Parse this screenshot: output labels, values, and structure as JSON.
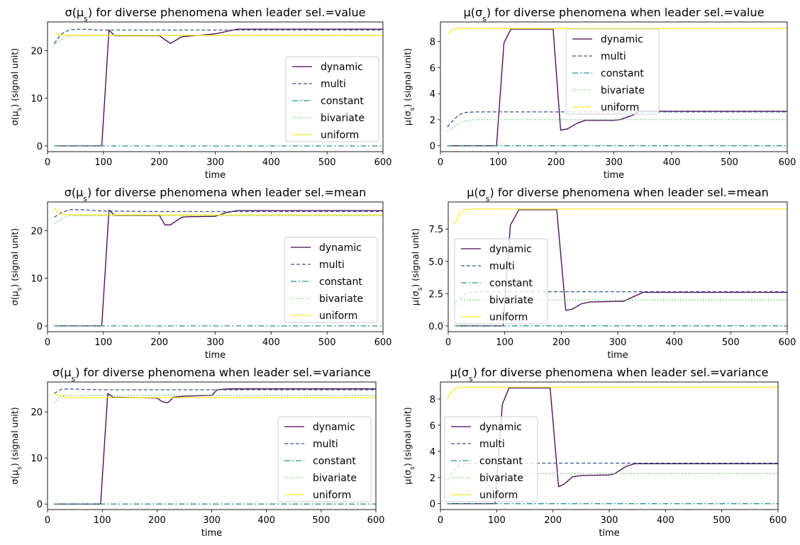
{
  "styles": {
    "dynamic": {
      "color": "#440154",
      "dash": ""
    },
    "multi": {
      "color": "#3b528b",
      "dash": "5,3"
    },
    "constant": {
      "color": "#21918c",
      "dash": "8,3,2,3"
    },
    "bivariate": {
      "color": "#5ec962",
      "dash": "1.5,2.5"
    },
    "uniform": {
      "color": "#fde725",
      "dash": ""
    }
  },
  "chart_data": [
    {
      "type": "line",
      "title_html": "σ(μ<tspan baseline-shift='sub' font-size='11'>s</tspan>) for diverse phenomena when leader sel.=value",
      "ylabel_html": "σ(μ<tspan baseline-shift='sub' font-size='9'>s</tspan>) (signal unit)",
      "xlabel": "time",
      "xlim": [
        0,
        600
      ],
      "ylim": [
        -1.2,
        26
      ],
      "xticks": [
        0,
        100,
        200,
        300,
        400,
        500,
        600
      ],
      "yticks": [
        0,
        10,
        20
      ],
      "ytick_labels": [
        "0",
        "10",
        "20"
      ],
      "legend": "center-right",
      "series": [
        {
          "name": "dynamic",
          "x": [
            12,
            97,
            110,
            120,
            200,
            220,
            240,
            250,
            300,
            340,
            600
          ],
          "y": [
            0,
            0,
            24.3,
            23.1,
            23.1,
            21.5,
            22.9,
            23.0,
            23.5,
            24.5,
            24.5
          ]
        },
        {
          "name": "multi",
          "x": [
            12,
            25,
            40,
            60,
            100,
            200,
            600
          ],
          "y": [
            21.5,
            23.5,
            24.4,
            24.5,
            24.3,
            24.3,
            24.3
          ]
        },
        {
          "name": "constant",
          "x": [
            12,
            600
          ],
          "y": [
            0,
            0
          ]
        },
        {
          "name": "bivariate",
          "x": [
            12,
            20,
            30,
            40,
            60,
            600
          ],
          "y": [
            21.3,
            21.8,
            22.8,
            23.1,
            23.1,
            23.1
          ]
        },
        {
          "name": "uniform",
          "x": [
            12,
            25,
            50,
            600
          ],
          "y": [
            23.6,
            23.3,
            23.2,
            23.2
          ]
        }
      ]
    },
    {
      "type": "line",
      "title_html": "μ(σ<tspan baseline-shift='sub' font-size='11'>s</tspan>) for diverse phenomena when leader sel.=value",
      "ylabel_html": "μ(σ<tspan baseline-shift='sub' font-size='9'>s</tspan>) (signal unit)",
      "xlabel": "time",
      "xlim": [
        0,
        600
      ],
      "ylim": [
        -0.45,
        9.5
      ],
      "xticks": [
        0,
        100,
        200,
        300,
        400,
        500,
        600
      ],
      "yticks": [
        0,
        2,
        4,
        6,
        8
      ],
      "ytick_labels": [
        "0",
        "2",
        "4",
        "6",
        "8"
      ],
      "legend": "top-center",
      "series": [
        {
          "name": "dynamic",
          "x": [
            12,
            97,
            110,
            122,
            195,
            208,
            220,
            235,
            250,
            300,
            310,
            330,
            345,
            600
          ],
          "y": [
            0,
            0,
            7.9,
            8.95,
            8.95,
            1.2,
            1.3,
            1.7,
            1.95,
            1.95,
            2.0,
            2.3,
            2.65,
            2.65
          ]
        },
        {
          "name": "multi",
          "x": [
            12,
            20,
            30,
            40,
            60,
            100,
            600
          ],
          "y": [
            1.45,
            1.85,
            2.3,
            2.55,
            2.6,
            2.6,
            2.6
          ]
        },
        {
          "name": "constant",
          "x": [
            12,
            600
          ],
          "y": [
            0,
            0
          ]
        },
        {
          "name": "bivariate",
          "x": [
            12,
            20,
            30,
            40,
            60,
            100,
            600
          ],
          "y": [
            1.15,
            1.3,
            1.7,
            1.9,
            2.0,
            2.0,
            2.0
          ]
        },
        {
          "name": "uniform",
          "x": [
            12,
            20,
            30,
            600
          ],
          "y": [
            8.5,
            8.9,
            9.0,
            9.0
          ]
        }
      ]
    },
    {
      "type": "line",
      "title_html": "σ(μ<tspan baseline-shift='sub' font-size='11'>s</tspan>) for diverse phenomena when leader sel.=mean",
      "ylabel_html": "σ(μ<tspan baseline-shift='sub' font-size='9'>s</tspan>) (signal unit)",
      "xlabel": "time",
      "xlim": [
        0,
        600
      ],
      "ylim": [
        -1.2,
        26
      ],
      "xticks": [
        0,
        100,
        200,
        300,
        400,
        500,
        600
      ],
      "yticks": [
        0,
        10,
        20
      ],
      "ytick_labels": [
        "0",
        "10",
        "20"
      ],
      "legend": "center-right",
      "series": [
        {
          "name": "dynamic",
          "x": [
            12,
            97,
            110,
            120,
            200,
            210,
            220,
            240,
            250,
            300,
            320,
            340,
            600
          ],
          "y": [
            0,
            0,
            24.3,
            23.2,
            23.2,
            21.2,
            21.2,
            22.8,
            22.9,
            23.0,
            23.8,
            24.2,
            24.2
          ]
        },
        {
          "name": "multi",
          "x": [
            12,
            25,
            40,
            60,
            100,
            200,
            600
          ],
          "y": [
            22.8,
            23.8,
            24.4,
            24.4,
            24.1,
            24.0,
            24.0
          ]
        },
        {
          "name": "constant",
          "x": [
            12,
            600
          ],
          "y": [
            0,
            0
          ]
        },
        {
          "name": "bivariate",
          "x": [
            12,
            20,
            30,
            40,
            60,
            600
          ],
          "y": [
            21.5,
            22.0,
            22.8,
            23.1,
            23.1,
            23.1
          ]
        },
        {
          "name": "uniform",
          "x": [
            12,
            20,
            40,
            600
          ],
          "y": [
            24.8,
            23.5,
            23.3,
            23.3
          ]
        }
      ]
    },
    {
      "type": "line",
      "title_html": "μ(σ<tspan baseline-shift='sub' font-size='11'>s</tspan>) for diverse phenomena when leader sel.=mean",
      "ylabel_html": "μ(σ<tspan baseline-shift='sub' font-size='9'>s</tspan>) (signal unit)",
      "xlabel": "time",
      "xlim": [
        0,
        600
      ],
      "ylim": [
        -0.45,
        9.6
      ],
      "xticks": [
        0,
        100,
        200,
        300,
        400,
        500,
        600
      ],
      "yticks": [
        0,
        2.5,
        5,
        7.5
      ],
      "ytick_labels": [
        "0.0",
        "2.5",
        "5.0",
        "7.5"
      ],
      "legend": "center-left",
      "series": [
        {
          "name": "dynamic",
          "x": [
            12,
            97,
            110,
            125,
            192,
            208,
            220,
            235,
            250,
            300,
            310,
            330,
            345,
            600
          ],
          "y": [
            0,
            0,
            7.8,
            9.0,
            9.0,
            1.2,
            1.3,
            1.7,
            1.85,
            1.9,
            1.9,
            2.3,
            2.6,
            2.6
          ]
        },
        {
          "name": "multi",
          "x": [
            12,
            20,
            30,
            40,
            60,
            100,
            600
          ],
          "y": [
            1.8,
            2.1,
            2.45,
            2.6,
            2.65,
            2.65,
            2.65
          ]
        },
        {
          "name": "constant",
          "x": [
            12,
            600
          ],
          "y": [
            0,
            0
          ]
        },
        {
          "name": "bivariate",
          "x": [
            12,
            20,
            30,
            40,
            60,
            100,
            600
          ],
          "y": [
            1.35,
            1.55,
            1.8,
            1.95,
            2.0,
            2.0,
            2.0
          ]
        },
        {
          "name": "uniform",
          "x": [
            12,
            20,
            30,
            45,
            600
          ],
          "y": [
            7.9,
            8.7,
            9.0,
            9.05,
            9.05
          ]
        }
      ]
    },
    {
      "type": "line",
      "title_html": "σ(μ<tspan baseline-shift='sub' font-size='11'>s</tspan>) for diverse phenomena when leader sel.=variance",
      "ylabel_html": "σ(μ<tspan baseline-shift='sub' font-size='9'>s</tspan>) (signal unit)",
      "xlabel": "time",
      "xlim": [
        0,
        600
      ],
      "ylim": [
        -1.2,
        26.5
      ],
      "xticks": [
        0,
        100,
        200,
        300,
        400,
        500,
        600
      ],
      "yticks": [
        0,
        10,
        20
      ],
      "ytick_labels": [
        "0",
        "10",
        "20"
      ],
      "legend": "center-right",
      "series": [
        {
          "name": "dynamic",
          "x": [
            12,
            97,
            110,
            120,
            200,
            210,
            220,
            230,
            250,
            300,
            310,
            330,
            600
          ],
          "y": [
            0,
            0,
            24.0,
            23.2,
            23.0,
            22.2,
            22.0,
            23.2,
            23.4,
            23.6,
            24.8,
            25.0,
            25.0
          ]
        },
        {
          "name": "multi",
          "x": [
            12,
            25,
            40,
            60,
            100,
            600
          ],
          "y": [
            24.0,
            24.9,
            25.0,
            24.9,
            24.8,
            24.8
          ]
        },
        {
          "name": "constant",
          "x": [
            12,
            600
          ],
          "y": [
            0,
            0
          ]
        },
        {
          "name": "bivariate",
          "x": [
            12,
            20,
            30,
            40,
            60,
            600
          ],
          "y": [
            22.0,
            23.0,
            23.6,
            23.6,
            23.6,
            23.6
          ]
        },
        {
          "name": "uniform",
          "x": [
            12,
            25,
            40,
            600
          ],
          "y": [
            24.0,
            23.4,
            23.1,
            23.1
          ]
        }
      ]
    },
    {
      "type": "line",
      "title_html": "μ(σ<tspan baseline-shift='sub' font-size='11'>s</tspan>) for diverse phenomena when leader sel.=variance",
      "ylabel_html": "μ(σ<tspan baseline-shift='sub' font-size='9'>s</tspan>) (signal unit)",
      "xlabel": "time",
      "xlim": [
        0,
        600
      ],
      "ylim": [
        -0.45,
        9.3
      ],
      "xticks": [
        0,
        100,
        200,
        300,
        400,
        500,
        600
      ],
      "yticks": [
        0,
        2,
        4,
        6,
        8
      ],
      "ytick_labels": [
        "0",
        "2",
        "4",
        "6",
        "8"
      ],
      "legend": "center-left",
      "series": [
        {
          "name": "dynamic",
          "x": [
            12,
            97,
            110,
            122,
            195,
            210,
            220,
            235,
            250,
            300,
            310,
            330,
            345,
            600
          ],
          "y": [
            0,
            0,
            7.6,
            8.85,
            8.85,
            1.3,
            1.5,
            2.05,
            2.15,
            2.2,
            2.3,
            2.85,
            3.05,
            3.05
          ]
        },
        {
          "name": "multi",
          "x": [
            12,
            20,
            30,
            40,
            60,
            100,
            600
          ],
          "y": [
            1.8,
            2.3,
            2.8,
            3.05,
            3.1,
            3.1,
            3.1
          ]
        },
        {
          "name": "constant",
          "x": [
            12,
            600
          ],
          "y": [
            0,
            0
          ]
        },
        {
          "name": "bivariate",
          "x": [
            12,
            20,
            30,
            40,
            60,
            100,
            600
          ],
          "y": [
            1.4,
            1.7,
            2.0,
            2.2,
            2.3,
            2.3,
            2.3
          ]
        },
        {
          "name": "uniform",
          "x": [
            12,
            20,
            30,
            45,
            600
          ],
          "y": [
            8.0,
            8.6,
            8.85,
            8.9,
            8.9
          ]
        }
      ]
    }
  ]
}
